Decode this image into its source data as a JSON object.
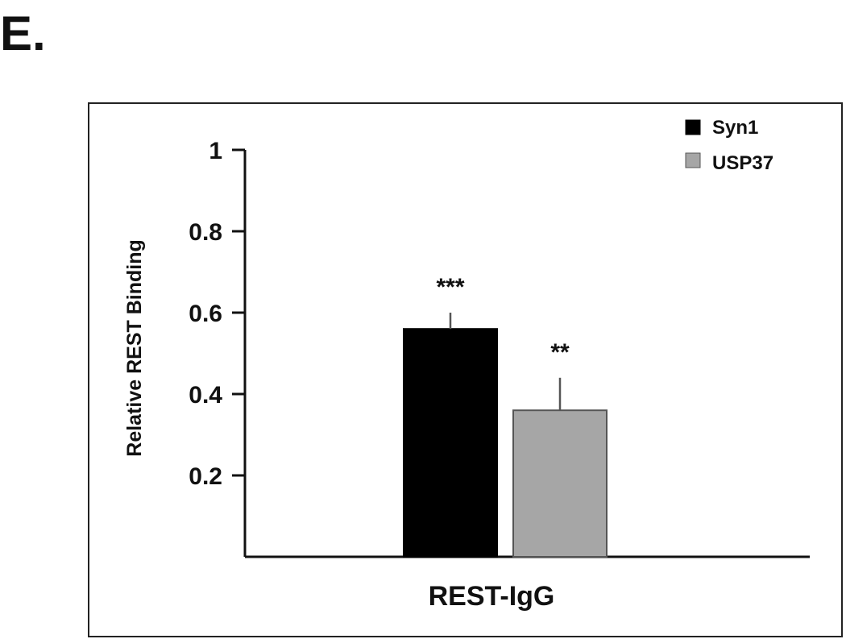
{
  "panel_label": "E.",
  "chart_data": {
    "type": "bar",
    "categories": [
      "REST-IgG"
    ],
    "series": [
      {
        "name": "Syn1",
        "values": [
          0.56
        ],
        "error": [
          0.04
        ],
        "significance": "***",
        "color": "#000000"
      },
      {
        "name": "USP37",
        "values": [
          0.36
        ],
        "error": [
          0.08
        ],
        "significance": "**",
        "color": "#a6a6a6"
      }
    ],
    "title": "",
    "xlabel": "REST-IgG",
    "ylabel": "Relative REST Binding",
    "ylim": [
      0,
      1
    ],
    "yticks": [
      {
        "value": 0.2,
        "label": "0.2"
      },
      {
        "value": 0.4,
        "label": "0.4"
      },
      {
        "value": 0.6,
        "label": "0.6"
      },
      {
        "value": 0.8,
        "label": "0.8"
      },
      {
        "value": 1.0,
        "label": "1"
      }
    ],
    "grid": false,
    "legend": "top-right"
  }
}
